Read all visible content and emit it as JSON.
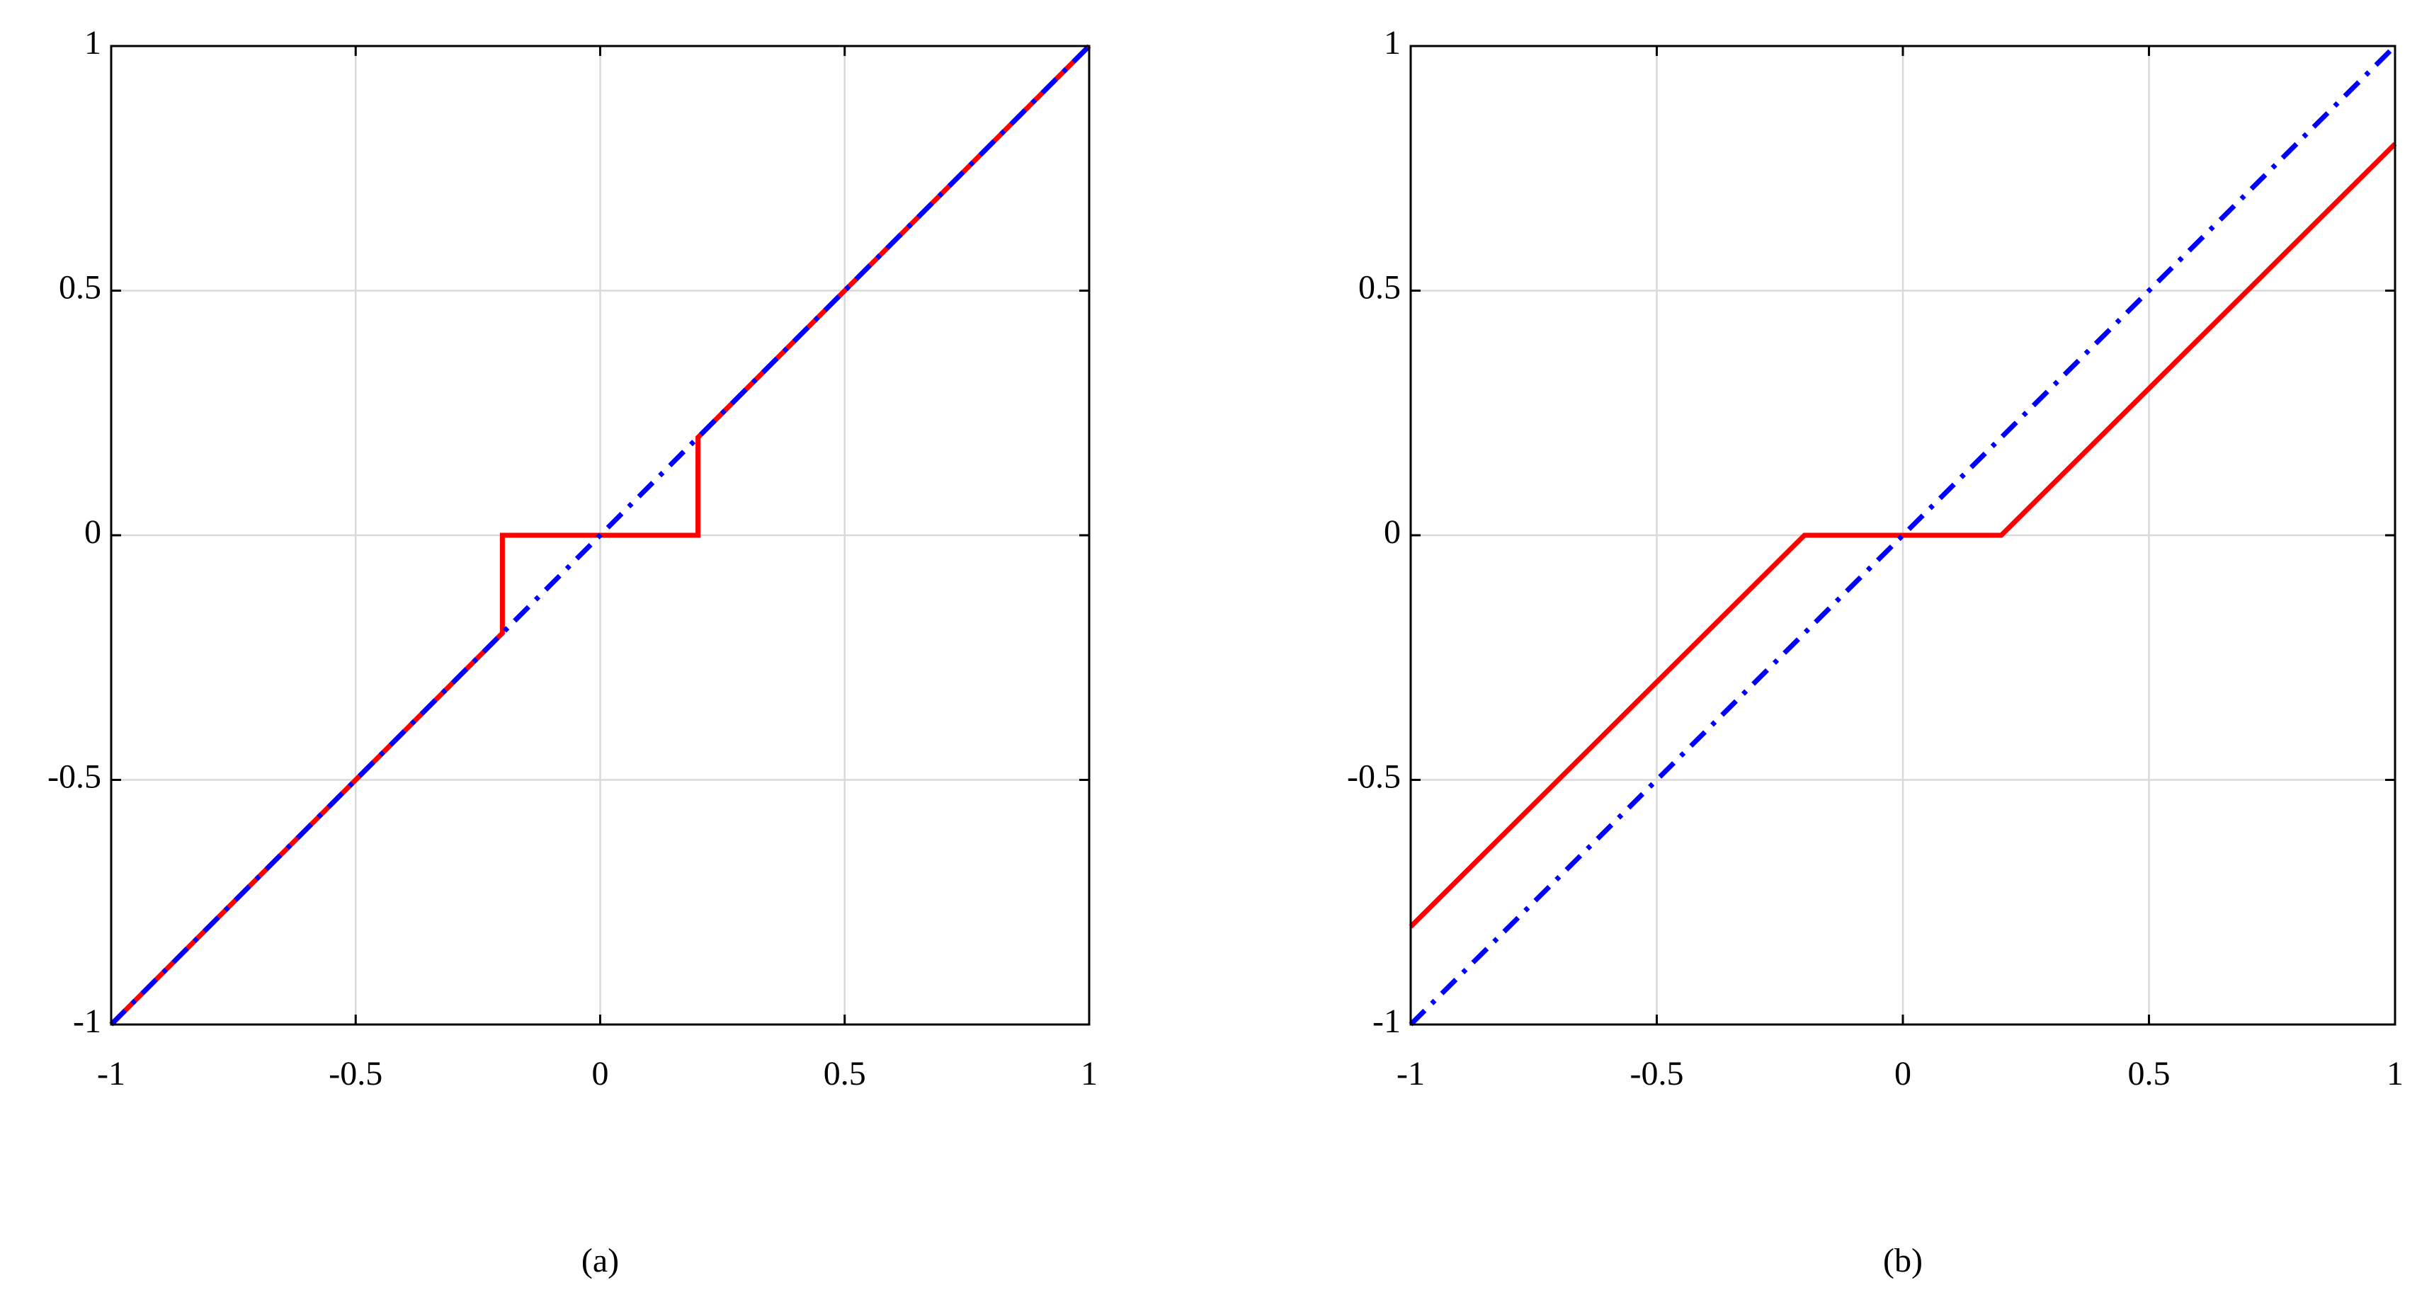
{
  "chart_data": [
    {
      "type": "line",
      "caption": "(a)",
      "xlim": [
        -1,
        1
      ],
      "ylim": [
        -1,
        1
      ],
      "xticks": [
        -1,
        -0.5,
        0,
        0.5,
        1
      ],
      "yticks": [
        -1,
        -0.5,
        0,
        0.5,
        1
      ],
      "grid": true,
      "series": [
        {
          "color": "#ff0000",
          "style": "solid",
          "x": [
            -1,
            -0.2,
            -0.2,
            0.2,
            0.2,
            1
          ],
          "values": [
            -1,
            -0.2,
            0,
            0,
            0.2,
            1
          ]
        },
        {
          "color": "#0000ff",
          "style": "dashdot",
          "x": [
            -1,
            1
          ],
          "values": [
            -1,
            1
          ]
        }
      ]
    },
    {
      "type": "line",
      "caption": "(b)",
      "xlim": [
        -1,
        1
      ],
      "ylim": [
        -1,
        1
      ],
      "xticks": [
        -1,
        -0.5,
        0,
        0.5,
        1
      ],
      "yticks": [
        -1,
        -0.5,
        0,
        0.5,
        1
      ],
      "grid": true,
      "series": [
        {
          "color": "#ff0000",
          "style": "solid",
          "x": [
            -1,
            -0.2,
            0.2,
            1
          ],
          "values": [
            -0.8,
            0,
            0,
            0.8
          ]
        },
        {
          "color": "#0000ff",
          "style": "dashdot",
          "x": [
            -1,
            1
          ],
          "values": [
            -1,
            1
          ]
        }
      ]
    }
  ]
}
